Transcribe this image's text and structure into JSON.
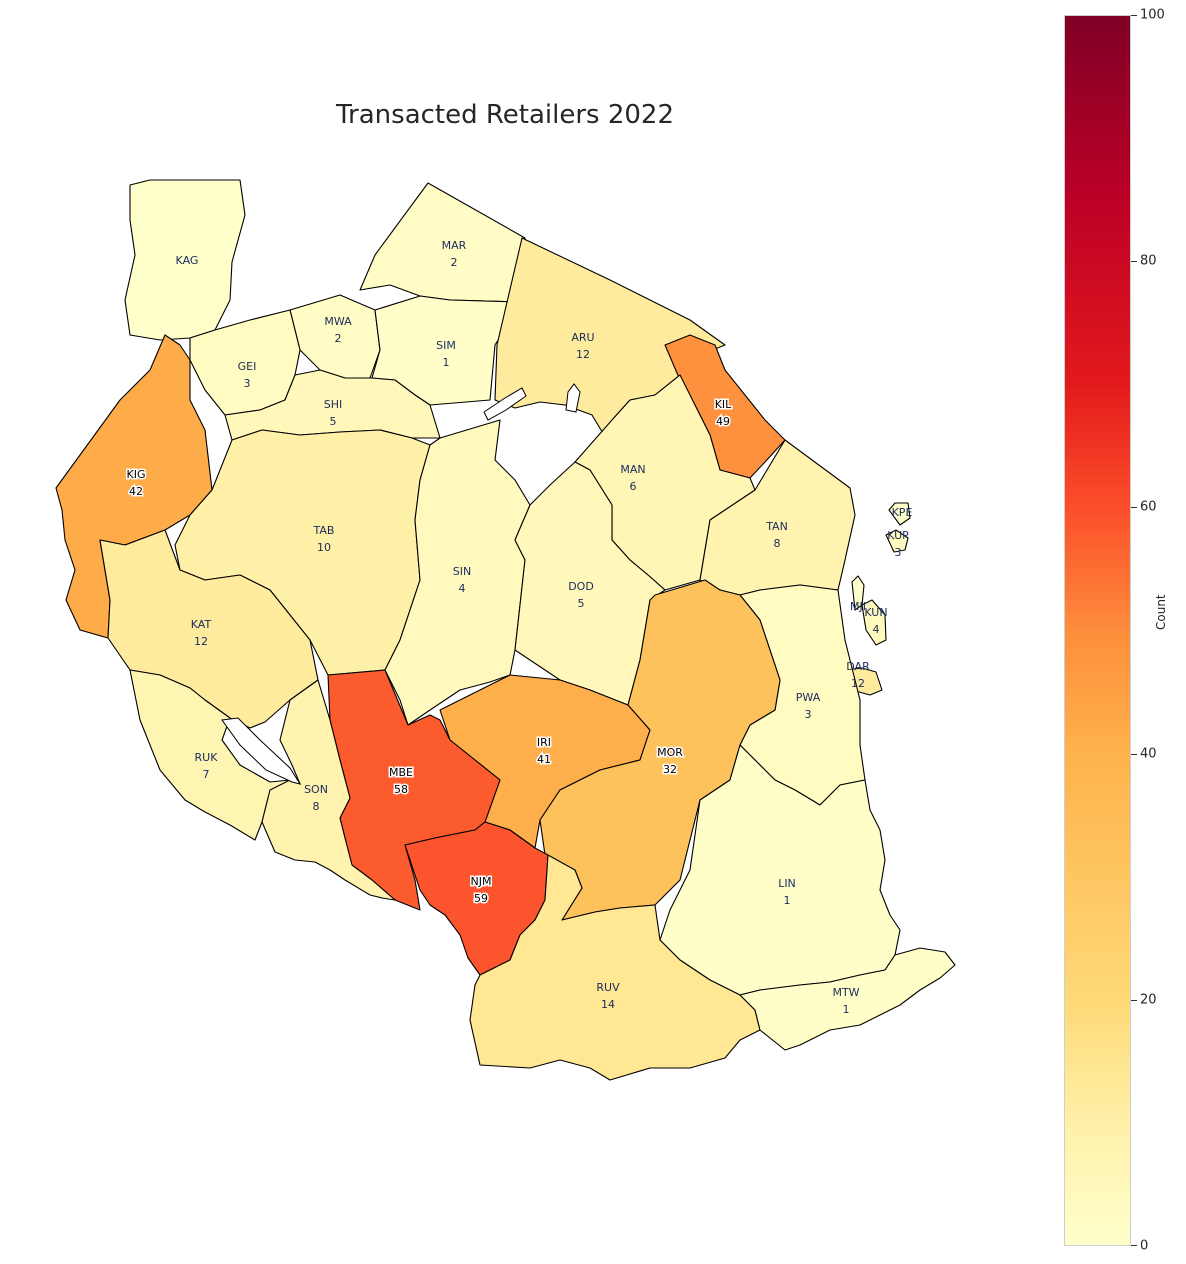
{
  "title": "Transacted Retailers 2022",
  "colorbar": {
    "label": "Count",
    "min": 0,
    "max": 100,
    "ticks": [
      "0",
      "20",
      "40",
      "60",
      "80",
      "100"
    ],
    "colors": [
      "#ffffcc",
      "#fed976",
      "#feb24c",
      "#fd8d3c",
      "#fc4e2a",
      "#e31a1c",
      "#bd0026",
      "#800026"
    ]
  },
  "regions": [
    {
      "code": "KAG",
      "count": null
    },
    {
      "code": "MAR",
      "count": 2
    },
    {
      "code": "MWA",
      "count": 2
    },
    {
      "code": "SIM",
      "count": 1
    },
    {
      "code": "ARU",
      "count": 12
    },
    {
      "code": "GEI",
      "count": 3
    },
    {
      "code": "SHI",
      "count": 5
    },
    {
      "code": "KIL",
      "count": 49
    },
    {
      "code": "KIG",
      "count": 42
    },
    {
      "code": "MAN",
      "count": 6
    },
    {
      "code": "TAB",
      "count": 10
    },
    {
      "code": "TAN",
      "count": 8
    },
    {
      "code": "SIN",
      "count": 4
    },
    {
      "code": "DOD",
      "count": 5
    },
    {
      "code": "KAT",
      "count": 12
    },
    {
      "code": "KPE",
      "count": null
    },
    {
      "code": "KUP",
      "count": 3
    },
    {
      "code": "MJI",
      "count": null
    },
    {
      "code": "KUN",
      "count": 4
    },
    {
      "code": "DAR",
      "count": 12
    },
    {
      "code": "PWA",
      "count": 3
    },
    {
      "code": "IRI",
      "count": 41
    },
    {
      "code": "MOR",
      "count": 32
    },
    {
      "code": "RUK",
      "count": 7
    },
    {
      "code": "MBE",
      "count": 58
    },
    {
      "code": "SON",
      "count": 8
    },
    {
      "code": "NJM",
      "count": 59
    },
    {
      "code": "LIN",
      "count": 1
    },
    {
      "code": "RUV",
      "count": 14
    },
    {
      "code": "MTW",
      "count": 1
    }
  ]
}
